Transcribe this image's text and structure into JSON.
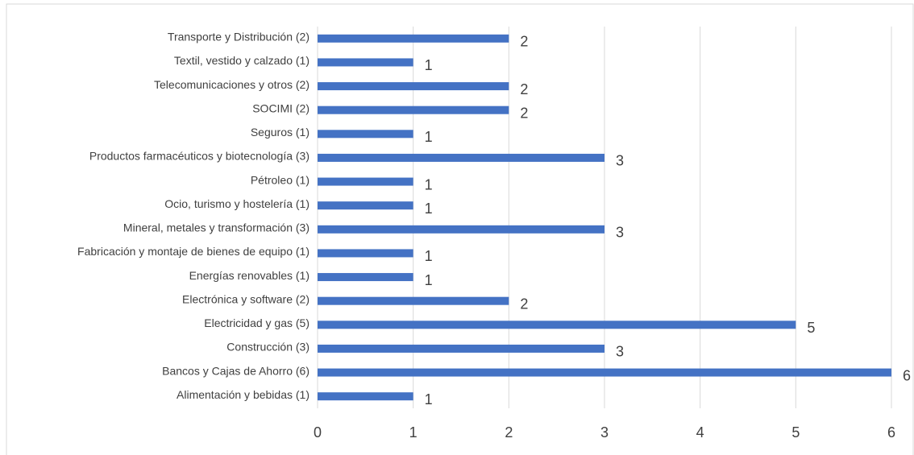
{
  "chart_data": {
    "type": "bar",
    "orientation": "horizontal",
    "categories": [
      "Transporte y Distribución (2)",
      "Textil, vestido y calzado (1)",
      "Telecomunicaciones y otros (2)",
      "SOCIMI (2)",
      "Seguros (1)",
      "Productos farmacéuticos y biotecnología (3)",
      "Pétroleo (1)",
      "Ocio, turismo y hostelería (1)",
      "Mineral, metales y transformación (3)",
      "Fabricación y montaje de bienes de equipo (1)",
      "Energías renovables (1)",
      "Electrónica y software (2)",
      "Electricidad y gas (5)",
      "Construcción (3)",
      "Bancos y Cajas de Ahorro (6)",
      "Alimentación y bebidas (1)"
    ],
    "values": [
      2,
      1,
      2,
      2,
      1,
      3,
      1,
      1,
      3,
      1,
      1,
      2,
      5,
      3,
      6,
      1
    ],
    "color": "#4472c4",
    "xlim": [
      0,
      6
    ],
    "xticks": [
      0,
      1,
      2,
      3,
      4,
      5,
      6
    ],
    "grid": true
  }
}
